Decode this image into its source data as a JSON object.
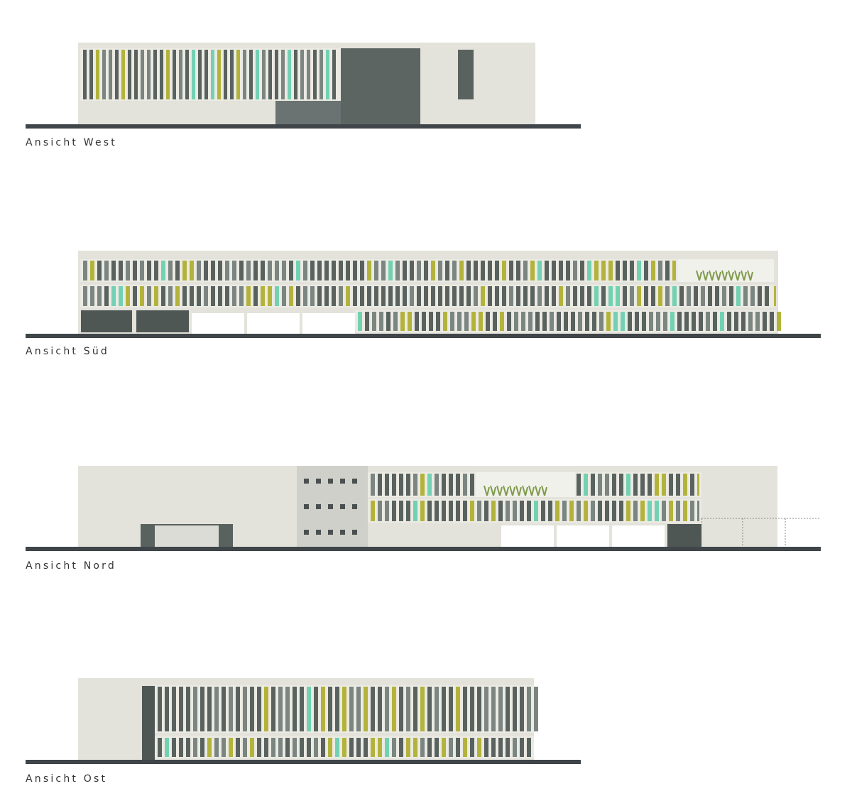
{
  "elevations": [
    {
      "label": "Ansicht West"
    },
    {
      "label": "Ansicht Süd"
    },
    {
      "label": "Ansicht Nord"
    },
    {
      "label": "Ansicht Ost"
    }
  ]
}
